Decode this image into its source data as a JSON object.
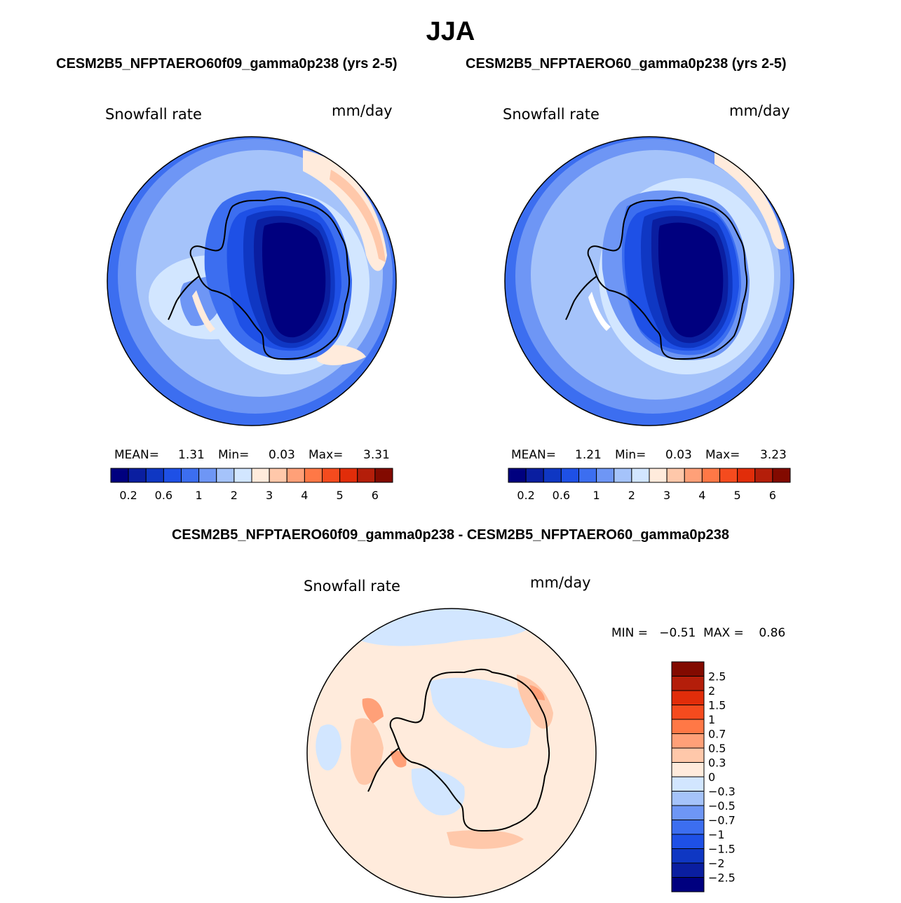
{
  "season_title": "JJA",
  "colors": {
    "pos_scale": [
      "#00007f",
      "#0a1ea0",
      "#0f37c3",
      "#1e50e6",
      "#3c6ef0",
      "#6e96f5",
      "#a5c3fa",
      "#d2e6ff",
      "#ffebdc",
      "#ffc8aa",
      "#ffa078",
      "#ff7846",
      "#f54b1e",
      "#e12d0a",
      "#b41e0a",
      "#820a00"
    ],
    "diff_scale": [
      "#00007f",
      "#0a1ea0",
      "#0f37c3",
      "#1e50e6",
      "#3c6ef0",
      "#6e96f5",
      "#a5c3fa",
      "#d2e6ff",
      "#ffebdc",
      "#ffc8aa",
      "#ffa078",
      "#ff7846",
      "#f54b1e",
      "#e12d0a",
      "#b41e0a",
      "#820a00"
    ],
    "coast": "#000000"
  },
  "panels": {
    "left": {
      "case_title": "CESM2B5_NFPTAERO60f09_gamma0p238 (yrs 2-5)",
      "var_label": "Snowfall rate",
      "units": "mm/day",
      "mean_label": "MEAN=",
      "mean_value": "1.31",
      "min_label": "Min=",
      "min_value": "0.03",
      "max_label": "Max=",
      "max_value": "3.31",
      "ticks": [
        "0.2",
        "0.6",
        "1",
        "2",
        "3",
        "4",
        "5",
        "6"
      ]
    },
    "right": {
      "case_title": "CESM2B5_NFPTAERO60_gamma0p238 (yrs 2-5)",
      "var_label": "Snowfall rate",
      "units": "mm/day",
      "mean_label": "MEAN=",
      "mean_value": "1.21",
      "min_label": "Min=",
      "min_value": "0.03",
      "max_label": "Max=",
      "max_value": "3.23",
      "ticks": [
        "0.2",
        "0.6",
        "1",
        "2",
        "3",
        "4",
        "5",
        "6"
      ]
    },
    "diff": {
      "title": "CESM2B5_NFPTAERO60f09_gamma0p238 - CESM2B5_NFPTAERO60_gamma0p238",
      "var_label": "Snowfall rate",
      "units": "mm/day",
      "minmax_text": "MIN =   −0.51  MAX =    0.86",
      "ticks": [
        "2.5",
        "2",
        "1.5",
        "1",
        "0.7",
        "0.5",
        "0.3",
        "0",
        "−0.3",
        "−0.5",
        "−0.7",
        "−1",
        "−1.5",
        "−2",
        "−2.5"
      ]
    }
  },
  "chart_data": [
    {
      "type": "heatmap",
      "title": "CESM2B5_NFPTAERO60f09_gamma0p238 (yrs 2-5)",
      "variable": "Snowfall rate",
      "units": "mm/day",
      "projection": "south polar stereographic",
      "colorbar_ticks": [
        0.2,
        0.6,
        1,
        2,
        3,
        4,
        5,
        6
      ],
      "mean": 1.31,
      "min": 0.03,
      "max": 3.31
    },
    {
      "type": "heatmap",
      "title": "CESM2B5_NFPTAERO60_gamma0p238 (yrs 2-5)",
      "variable": "Snowfall rate",
      "units": "mm/day",
      "projection": "south polar stereographic",
      "colorbar_ticks": [
        0.2,
        0.6,
        1,
        2,
        3,
        4,
        5,
        6
      ],
      "mean": 1.21,
      "min": 0.03,
      "max": 3.23
    },
    {
      "type": "heatmap",
      "title": "CESM2B5_NFPTAERO60f09_gamma0p238 - CESM2B5_NFPTAERO60_gamma0p238",
      "variable": "Snowfall rate",
      "units": "mm/day",
      "projection": "south polar stereographic",
      "colorbar_ticks": [
        -2.5,
        -2,
        -1.5,
        -1,
        -0.7,
        -0.5,
        -0.3,
        0,
        0.3,
        0.5,
        0.7,
        1,
        1.5,
        2,
        2.5
      ],
      "min": -0.51,
      "max": 0.86
    }
  ]
}
